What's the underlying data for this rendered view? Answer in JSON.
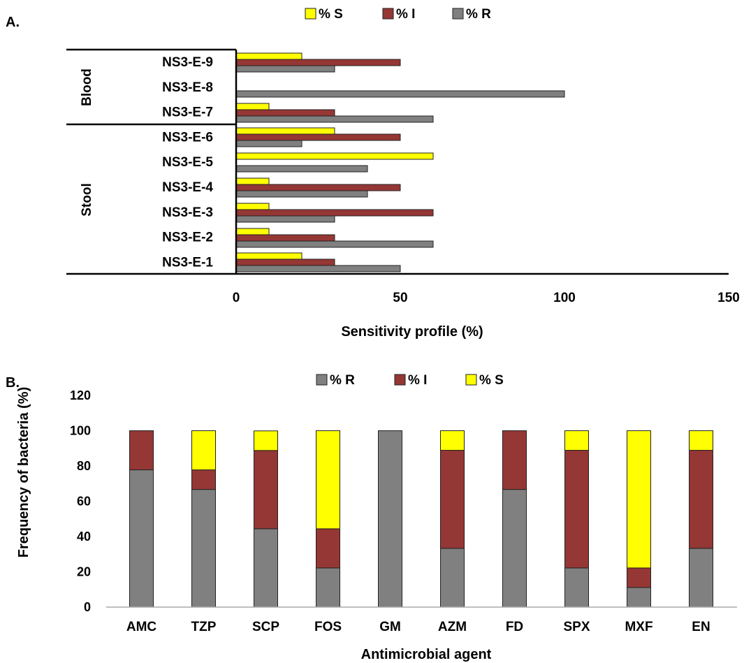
{
  "colors": {
    "R": "#808080",
    "I": "#953735",
    "S": "#ffff00",
    "stroke": "#222222"
  },
  "chart_data": [
    {
      "panel_label": "A.",
      "type": "bar",
      "orientation": "horizontal",
      "categories": [
        "NS3-E-9",
        "NS3-E-8",
        "NS3-E-7",
        "NS3-E-6",
        "NS3-E-5",
        "NS3-E-4",
        "NS3-E-3",
        "NS3-E-2",
        "NS3-E-1"
      ],
      "groups": [
        {
          "label": "Blood",
          "categories": [
            "NS3-E-9",
            "NS3-E-8",
            "NS3-E-7"
          ]
        },
        {
          "label": "Stool",
          "categories": [
            "NS3-E-6",
            "NS3-E-5",
            "NS3-E-4",
            "NS3-E-3",
            "NS3-E-2",
            "NS3-E-1"
          ]
        }
      ],
      "series": [
        {
          "name": "% S",
          "color_key": "S",
          "values": [
            20,
            0,
            10,
            30,
            60,
            10,
            10,
            10,
            20
          ]
        },
        {
          "name": "% I",
          "color_key": "I",
          "values": [
            50,
            0,
            30,
            50,
            0,
            50,
            60,
            30,
            30
          ]
        },
        {
          "name": "% R",
          "color_key": "R",
          "values": [
            30,
            100,
            60,
            20,
            40,
            40,
            30,
            60,
            50
          ]
        }
      ],
      "xlabel": "Sensitivity profile (%)",
      "xlim": [
        0,
        150
      ],
      "xticks": [
        0,
        50,
        100,
        150
      ],
      "legend": "top-center",
      "grid": false
    },
    {
      "panel_label": "B.",
      "type": "bar",
      "stacked": true,
      "categories": [
        "AMC",
        "TZP",
        "SCP",
        "FOS",
        "GM",
        "AZM",
        "FD",
        "SPX",
        "MXF",
        "EN"
      ],
      "series": [
        {
          "name": "% R",
          "color_key": "R",
          "values": [
            77.8,
            66.7,
            44.4,
            22.2,
            100,
            33.3,
            66.7,
            22.2,
            11.1,
            33.3
          ]
        },
        {
          "name": "% I",
          "color_key": "I",
          "values": [
            22.2,
            11.1,
            44.4,
            22.2,
            0,
            55.6,
            33.3,
            66.7,
            11.1,
            55.6
          ]
        },
        {
          "name": "% S",
          "color_key": "S",
          "values": [
            0,
            22.2,
            11.1,
            55.6,
            0,
            11.1,
            0,
            11.1,
            77.8,
            11.1
          ]
        }
      ],
      "xlabel": "Antimicrobial agent",
      "ylabel": "Frequency of bacteria (%)",
      "ylim": [
        0,
        120
      ],
      "yticks": [
        0,
        20,
        40,
        60,
        80,
        100,
        120
      ],
      "legend": "top-center",
      "grid": false
    }
  ]
}
